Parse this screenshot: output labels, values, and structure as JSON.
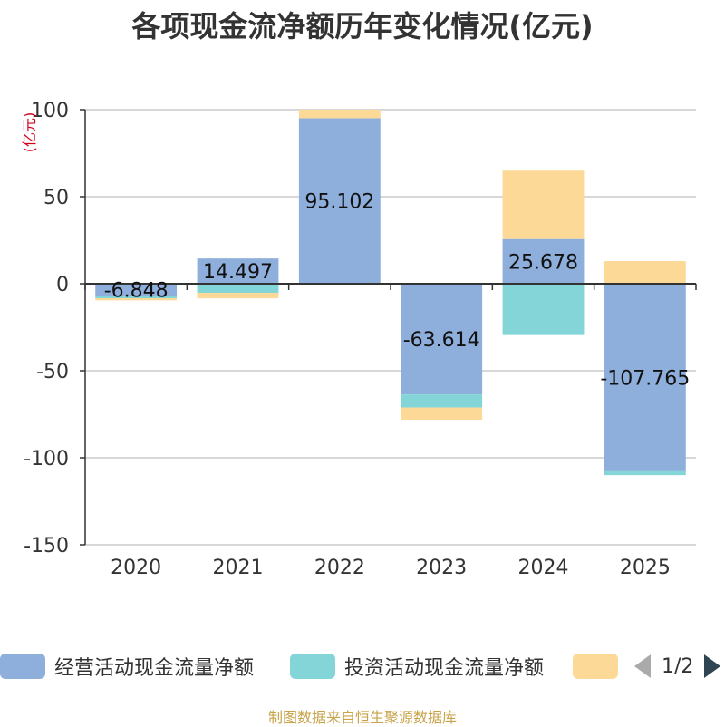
{
  "chart_data": {
    "type": "bar",
    "stacked": true,
    "title": "各项现金流净额历年变化情况(亿元)",
    "ylabel": "(亿元)",
    "xlabel": "",
    "categories": [
      "2020",
      "2021",
      "2022",
      "2023",
      "2024",
      "2025"
    ],
    "ylim": [
      -150,
      100
    ],
    "yticks": [
      100,
      50,
      0,
      -50,
      -100,
      -150
    ],
    "series": [
      {
        "name": "经营活动现金流量净额",
        "color": "#8eaedb",
        "values": [
          -6.848,
          14.497,
          95.102,
          -63.614,
          25.678,
          -107.765
        ],
        "show_labels": true
      },
      {
        "name": "投资活动现金流量净额",
        "color": "#84d5d8",
        "values": [
          -1.5,
          -5.2,
          0,
          -7.5,
          -29.5,
          -2.2
        ],
        "show_labels": false
      },
      {
        "name": "",
        "color": "#fdd998",
        "values": [
          -1.2,
          -3.2,
          4.9,
          -7.0,
          39.3,
          13.0
        ],
        "show_labels": false
      }
    ],
    "legend_position": "bottom"
  },
  "legend": {
    "items": [
      "经营活动现金流量净额",
      "投资活动现金流量净额",
      ""
    ],
    "page_text": "1/2"
  },
  "footer": "制图数据来自恒生聚源数据库"
}
